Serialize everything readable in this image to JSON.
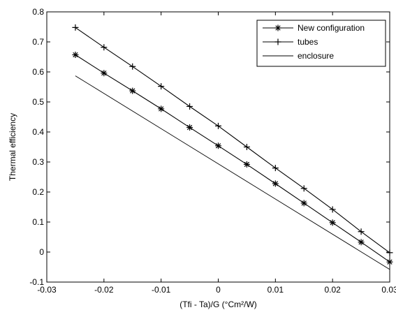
{
  "chart_data": {
    "type": "line",
    "title": "",
    "xlabel": "(Tfi - Ta)/G (°Cm²/W)",
    "ylabel": "Thermal efficiency",
    "xlim": [
      -0.03,
      0.03
    ],
    "ylim": [
      -0.1,
      0.8
    ],
    "xticks": [
      -0.03,
      -0.02,
      -0.01,
      0,
      0.01,
      0.02,
      0.03
    ],
    "xtick_labels": [
      "-0.03",
      "-0.02",
      "-0.01",
      "0",
      "0.01",
      "0.02",
      "0.03"
    ],
    "yticks": [
      -0.1,
      0,
      0.1,
      0.2,
      0.3,
      0.4,
      0.5,
      0.6,
      0.7,
      0.8
    ],
    "ytick_labels": [
      "-0.1",
      "0",
      "0.1",
      "0.2",
      "0.3",
      "0.4",
      "0.5",
      "0.6",
      "0.7",
      "0.8"
    ],
    "grid": false,
    "legend_position": "top-right",
    "line_color": "#000000",
    "series": [
      {
        "name": "New configuration",
        "marker": "star",
        "x": [
          -0.025,
          -0.02,
          -0.015,
          -0.01,
          -0.005,
          0,
          0.005,
          0.01,
          0.015,
          0.02,
          0.025,
          0.03
        ],
        "y": [
          0.657,
          0.596,
          0.537,
          0.477,
          0.415,
          0.354,
          0.292,
          0.228,
          0.163,
          0.098,
          0.033,
          -0.033
        ]
      },
      {
        "name": "tubes",
        "marker": "plus",
        "x": [
          -0.025,
          -0.02,
          -0.015,
          -0.01,
          -0.005,
          0,
          0.005,
          0.01,
          0.015,
          0.02,
          0.025,
          0.03
        ],
        "y": [
          0.748,
          0.682,
          0.618,
          0.552,
          0.485,
          0.42,
          0.35,
          0.28,
          0.212,
          0.142,
          0.068,
          -0.002
        ]
      },
      {
        "name": "enclosure",
        "marker": "none",
        "x": [
          -0.025,
          0.03
        ],
        "y": [
          0.587,
          -0.058
        ]
      }
    ]
  }
}
